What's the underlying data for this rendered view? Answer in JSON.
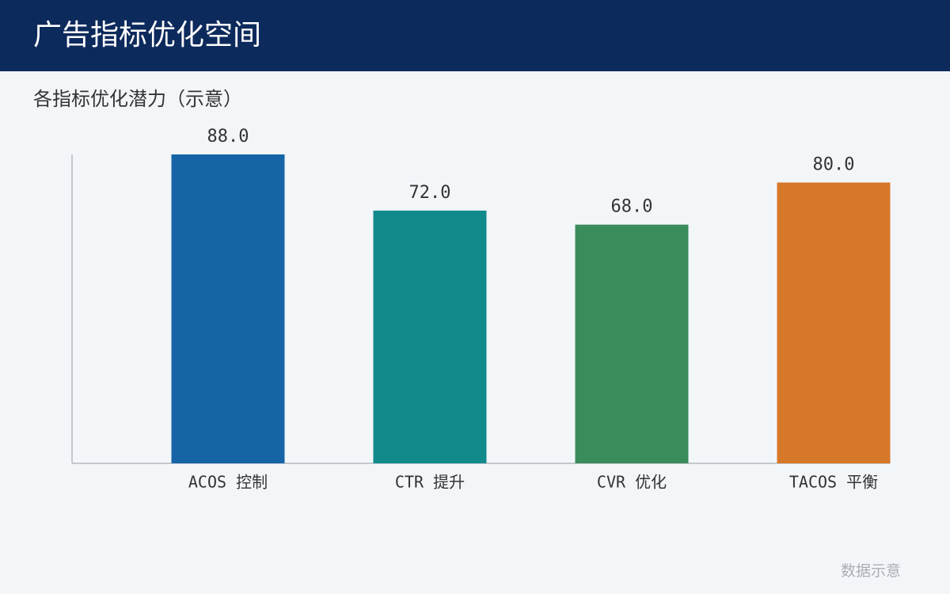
{
  "chart_data": {
    "type": "bar",
    "title": "广告指标优化空间",
    "subtitle": "各指标优化潜力（示意）",
    "footnote": "数据示意",
    "categories": [
      "ACOS 控制",
      "CTR 提升",
      "CVR 优化",
      "TACOS 平衡"
    ],
    "values": [
      88,
      72,
      68,
      80
    ],
    "value_labels": [
      "88.0",
      "72.0",
      "68.0",
      "80.0"
    ],
    "colors": [
      "#1565a6",
      "#118a8c",
      "#3a8c5a",
      "#d6782a"
    ],
    "ylim": [
      0,
      88
    ]
  }
}
